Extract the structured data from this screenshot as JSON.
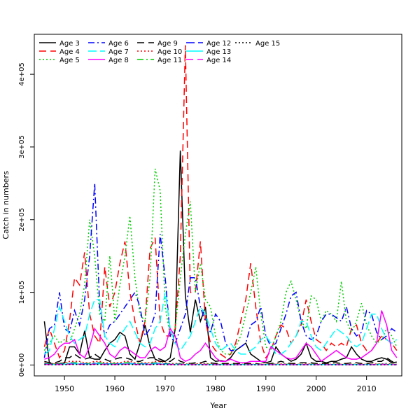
{
  "chart_data": {
    "type": "line",
    "title": "",
    "xlabel": "Year",
    "ylabel": "Catch in numbers",
    "xlim": [
      1944,
      2017
    ],
    "ylim": [
      -15000,
      455000
    ],
    "x_ticks": [
      1950,
      1960,
      1970,
      1980,
      1990,
      2000,
      2010
    ],
    "x_tick_labels": [
      "1950",
      "1960",
      "1970",
      "1980",
      "1990",
      "2000",
      "2010"
    ],
    "y_ticks": [
      0,
      100000,
      200000,
      300000,
      400000
    ],
    "y_tick_labels": [
      "0e+00",
      "1e+05",
      "2e+05",
      "3e+05",
      "4e+05"
    ],
    "grid": false,
    "legend_position": "top-left",
    "x": [
      1946,
      1947,
      1948,
      1949,
      1950,
      1951,
      1952,
      1953,
      1954,
      1955,
      1956,
      1957,
      1958,
      1959,
      1960,
      1961,
      1962,
      1963,
      1964,
      1965,
      1966,
      1967,
      1968,
      1969,
      1970,
      1971,
      1972,
      1973,
      1974,
      1975,
      1976,
      1977,
      1978,
      1979,
      1980,
      1981,
      1982,
      1983,
      1984,
      1985,
      1986,
      1987,
      1988,
      1989,
      1990,
      1991,
      1992,
      1993,
      1994,
      1995,
      1996,
      1997,
      1998,
      1999,
      2000,
      2001,
      2002,
      2003,
      2004,
      2005,
      2006,
      2007,
      2008,
      2009,
      2010,
      2011,
      2012,
      2013,
      2014,
      2015,
      2016
    ],
    "series": [
      {
        "name": "Age 3",
        "color": "#000000",
        "dash": "solid",
        "values": [
          60000,
          2000,
          1000,
          2000,
          3000,
          25000,
          25000,
          15000,
          47000,
          10000,
          8000,
          8000,
          20000,
          30000,
          35000,
          45000,
          40000,
          15000,
          8000,
          30000,
          55000,
          25000,
          8000,
          5000,
          5000,
          10000,
          50000,
          295000,
          95000,
          45000,
          90000,
          60000,
          80000,
          10000,
          5000,
          6000,
          5000,
          10000,
          20000,
          25000,
          30000,
          15000,
          10000,
          5000,
          3000,
          5000,
          25000,
          15000,
          10000,
          5000,
          8000,
          15000,
          30000,
          10000,
          5000,
          5000,
          3000,
          5000,
          5000,
          8000,
          10000,
          25000,
          15000,
          8000,
          5000,
          5000,
          8000,
          10000,
          8000,
          3000,
          4000
        ]
      },
      {
        "name": "Age 4",
        "color": "#ff0000",
        "dash": "10,6",
        "values": [
          25000,
          50000,
          30000,
          10000,
          20000,
          60000,
          120000,
          110000,
          155000,
          70000,
          40000,
          30000,
          135000,
          80000,
          100000,
          140000,
          170000,
          100000,
          60000,
          30000,
          60000,
          160000,
          175000,
          60000,
          40000,
          40000,
          50000,
          150000,
          440000,
          100000,
          100000,
          170000,
          60000,
          30000,
          20000,
          15000,
          10000,
          15000,
          30000,
          60000,
          90000,
          140000,
          80000,
          30000,
          10000,
          20000,
          40000,
          55000,
          50000,
          30000,
          40000,
          55000,
          90000,
          60000,
          35000,
          30000,
          20000,
          30000,
          25000,
          30000,
          25000,
          50000,
          55000,
          30000,
          20000,
          20000,
          30000,
          40000,
          35000,
          30000,
          20000
        ]
      },
      {
        "name": "Age 5",
        "color": "#00cd00",
        "dash": "2,3",
        "values": [
          20000,
          30000,
          40000,
          30000,
          35000,
          30000,
          50000,
          70000,
          110000,
          200000,
          150000,
          70000,
          60000,
          150000,
          60000,
          110000,
          150000,
          205000,
          120000,
          70000,
          60000,
          120000,
          270000,
          240000,
          80000,
          40000,
          50000,
          120000,
          180000,
          225000,
          100000,
          140000,
          90000,
          80000,
          40000,
          20000,
          15000,
          15000,
          25000,
          40000,
          70000,
          100000,
          135000,
          70000,
          25000,
          20000,
          40000,
          60000,
          100000,
          115000,
          90000,
          60000,
          50000,
          95000,
          90000,
          60000,
          75000,
          70000,
          60000,
          115000,
          60000,
          45000,
          60000,
          85000,
          55000,
          40000,
          30000,
          35000,
          50000,
          40000,
          25000
        ]
      },
      {
        "name": "Age 6",
        "color": "#0000ff",
        "dash": "9,4,2,4",
        "values": [
          10000,
          50000,
          55000,
          100000,
          50000,
          45000,
          75000,
          55000,
          90000,
          150000,
          250000,
          80000,
          40000,
          55000,
          60000,
          70000,
          80000,
          90000,
          100000,
          80000,
          40000,
          50000,
          70000,
          180000,
          120000,
          40000,
          30000,
          50000,
          70000,
          120000,
          120000,
          80000,
          60000,
          45000,
          70000,
          60000,
          30000,
          20000,
          20000,
          25000,
          30000,
          55000,
          60000,
          80000,
          40000,
          25000,
          30000,
          50000,
          70000,
          95000,
          100000,
          60000,
          40000,
          35000,
          40000,
          60000,
          70000,
          70000,
          65000,
          60000,
          80000,
          50000,
          40000,
          45000,
          75000,
          70000,
          45000,
          35000,
          40000,
          50000,
          45000
        ]
      },
      {
        "name": "Age 7",
        "color": "#00ffff",
        "dash": "12,5",
        "values": [
          15000,
          20000,
          50000,
          80000,
          60000,
          40000,
          30000,
          35000,
          40000,
          70000,
          90000,
          90000,
          40000,
          30000,
          25000,
          40000,
          50000,
          60000,
          45000,
          30000,
          25000,
          30000,
          50000,
          60000,
          100000,
          50000,
          30000,
          20000,
          30000,
          40000,
          60000,
          80000,
          70000,
          50000,
          30000,
          20000,
          25000,
          30000,
          20000,
          15000,
          15000,
          20000,
          25000,
          35000,
          40000,
          30000,
          15000,
          15000,
          20000,
          30000,
          40000,
          60000,
          60000,
          40000,
          25000,
          20000,
          30000,
          40000,
          50000,
          45000,
          40000,
          30000,
          25000,
          30000,
          50000,
          70000,
          70000,
          50000,
          35000,
          30000,
          35000
        ]
      },
      {
        "name": "Age 8",
        "color": "#ff00ff",
        "dash": "solid",
        "values": [
          8000,
          10000,
          15000,
          25000,
          30000,
          30000,
          35000,
          15000,
          10000,
          25000,
          50000,
          40000,
          30000,
          15000,
          10000,
          20000,
          25000,
          20000,
          15000,
          10000,
          10000,
          20000,
          25000,
          20000,
          25000,
          50000,
          40000,
          10000,
          5000,
          8000,
          15000,
          20000,
          30000,
          20000,
          10000,
          5000,
          5000,
          8000,
          5000,
          3000,
          3000,
          5000,
          5000,
          5000,
          5000,
          25000,
          20000,
          15000,
          10000,
          8000,
          10000,
          20000,
          30000,
          25000,
          15000,
          5000,
          10000,
          15000,
          20000,
          15000,
          10000,
          8000,
          8000,
          10000,
          15000,
          20000,
          30000,
          75000,
          55000,
          20000,
          10000
        ]
      },
      {
        "name": "Age 9",
        "color": "#000000",
        "dash": "10,6",
        "values": [
          5000,
          3000,
          3000,
          5000,
          10000,
          10000,
          15000,
          10000,
          8000,
          10000,
          15000,
          10000,
          8000,
          5000,
          8000,
          10000,
          10000,
          8000,
          5000,
          5000,
          8000,
          10000,
          10000,
          8000,
          5000,
          5000,
          10000,
          5000,
          3000,
          2000,
          3000,
          3000,
          5000,
          3000,
          2000,
          2000,
          2000,
          2000,
          2000,
          2000,
          2000,
          2000,
          2000,
          1000,
          1000,
          2000,
          3000,
          5000,
          3000,
          2000,
          2000,
          3000,
          3000,
          3000,
          2000,
          2000,
          2000,
          3000,
          3000,
          2000,
          2000,
          3000,
          3000,
          2000,
          2000,
          3000,
          5000,
          5000,
          10000,
          5000,
          3000
        ]
      },
      {
        "name": "Age 10",
        "color": "#ff0000",
        "dash": "2,3",
        "values": [
          3000,
          2000,
          2000,
          2000,
          3000,
          5000,
          5000,
          5000,
          3000,
          3000,
          5000,
          5000,
          3000,
          3000,
          3000,
          3000,
          5000,
          5000,
          3000,
          3000,
          3000,
          3000,
          5000,
          5000,
          3000,
          2000,
          2000,
          2000,
          1500,
          1500,
          1500,
          2000,
          2000,
          1500,
          1000,
          1000,
          1000,
          1000,
          1000,
          1000,
          1000,
          1000,
          1000,
          1000,
          1000,
          1000,
          1500,
          1500,
          1500,
          1000,
          1000,
          1000,
          1500,
          1500,
          1000,
          1000,
          1000,
          1000,
          1000,
          1000,
          1000,
          1000,
          1000,
          1000,
          1000,
          1000,
          1500,
          1500,
          2000,
          1500,
          1000
        ]
      },
      {
        "name": "Age 11",
        "color": "#00cd00",
        "dash": "9,4,2,4",
        "values": [
          2000,
          1500,
          1500,
          1500,
          2000,
          3000,
          3000,
          3000,
          2000,
          2000,
          3000,
          3000,
          2000,
          2000,
          2000,
          2000,
          3000,
          3000,
          2000,
          2000,
          2000,
          2000,
          3000,
          3000,
          2000,
          1500,
          1500,
          1500,
          1000,
          1000,
          1000,
          1000,
          1000,
          1000,
          800,
          800,
          800,
          800,
          800,
          800,
          800,
          800,
          800,
          800,
          800,
          800,
          1000,
          1000,
          1000,
          800,
          800,
          800,
          1000,
          1000,
          800,
          800,
          800,
          800,
          800,
          800,
          800,
          800,
          800,
          800,
          800,
          800,
          1000,
          1000,
          1500,
          1000,
          800
        ]
      },
      {
        "name": "Age 12",
        "color": "#0000ff",
        "dash": "12,5",
        "values": [
          1500,
          1000,
          1000,
          1000,
          1500,
          2000,
          2000,
          2000,
          1500,
          1500,
          2000,
          2000,
          1500,
          1500,
          1500,
          1500,
          2000,
          2000,
          1500,
          1500,
          1500,
          1500,
          2000,
          2000,
          1500,
          1000,
          1000,
          1000,
          800,
          800,
          800,
          800,
          800,
          800,
          600,
          600,
          600,
          600,
          600,
          600,
          600,
          600,
          600,
          600,
          600,
          600,
          800,
          800,
          800,
          600,
          600,
          600,
          800,
          800,
          600,
          600,
          600,
          600,
          600,
          600,
          600,
          600,
          600,
          600,
          600,
          600,
          800,
          800,
          1000,
          800,
          600
        ]
      },
      {
        "name": "Age 13",
        "color": "#00ffff",
        "dash": "solid",
        "values": [
          1000,
          800,
          800,
          800,
          1000,
          1500,
          1500,
          1500,
          1000,
          1000,
          1500,
          1500,
          1000,
          1000,
          1000,
          1000,
          1500,
          1500,
          1000,
          1000,
          1000,
          1000,
          1500,
          1500,
          1000,
          800,
          800,
          800,
          600,
          600,
          600,
          600,
          600,
          600,
          500,
          500,
          500,
          500,
          500,
          500,
          500,
          500,
          500,
          500,
          500,
          500,
          600,
          600,
          600,
          500,
          500,
          500,
          600,
          600,
          500,
          500,
          500,
          500,
          500,
          500,
          500,
          500,
          500,
          500,
          500,
          500,
          600,
          600,
          800,
          600,
          500
        ]
      },
      {
        "name": "Age 14",
        "color": "#ff00ff",
        "dash": "10,6",
        "values": [
          800,
          600,
          600,
          600,
          800,
          1000,
          1000,
          1000,
          800,
          800,
          1000,
          1000,
          800,
          800,
          800,
          800,
          1000,
          1000,
          800,
          800,
          800,
          800,
          1000,
          1000,
          800,
          600,
          600,
          600,
          500,
          500,
          500,
          500,
          500,
          500,
          400,
          400,
          400,
          400,
          400,
          400,
          400,
          400,
          400,
          400,
          400,
          400,
          500,
          500,
          500,
          400,
          400,
          400,
          500,
          500,
          400,
          400,
          400,
          400,
          400,
          400,
          400,
          400,
          400,
          400,
          400,
          400,
          500,
          500,
          600,
          500,
          400
        ]
      },
      {
        "name": "Age 15",
        "color": "#000000",
        "dash": "2,3",
        "values": [
          500,
          400,
          400,
          400,
          500,
          800,
          800,
          800,
          500,
          500,
          800,
          800,
          500,
          500,
          500,
          500,
          800,
          800,
          500,
          500,
          500,
          500,
          800,
          800,
          500,
          400,
          400,
          400,
          300,
          300,
          300,
          300,
          300,
          300,
          300,
          300,
          300,
          300,
          300,
          300,
          300,
          300,
          300,
          300,
          300,
          300,
          300,
          300,
          300,
          300,
          300,
          300,
          300,
          300,
          300,
          300,
          300,
          300,
          300,
          300,
          300,
          300,
          300,
          300,
          300,
          300,
          300,
          300,
          500,
          300,
          300
        ]
      }
    ]
  }
}
